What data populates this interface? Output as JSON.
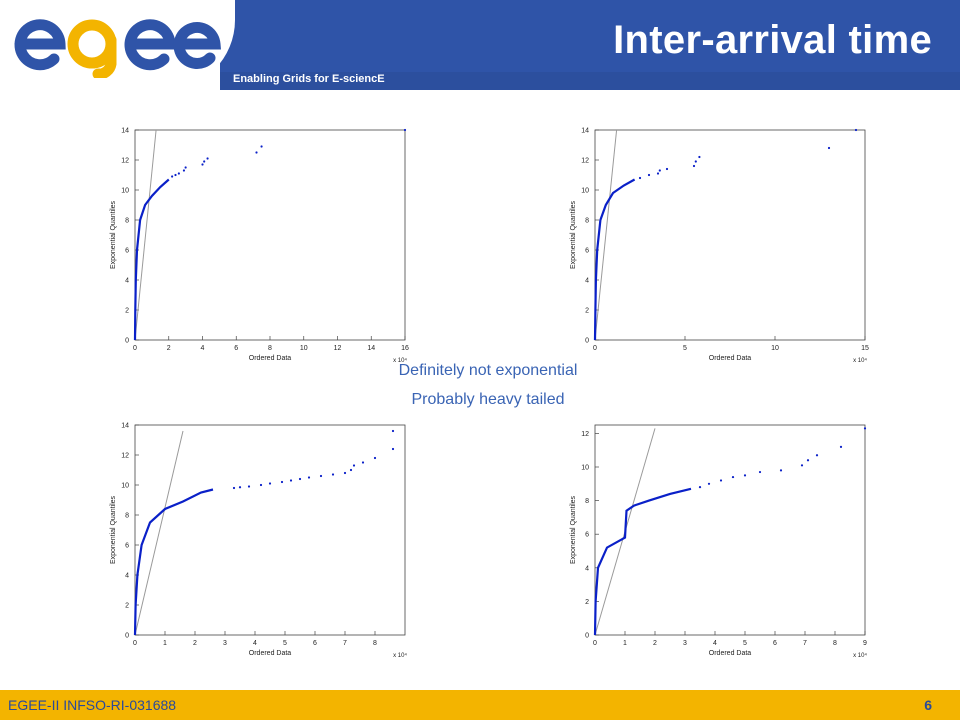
{
  "header": {
    "title": "Inter-arrival time",
    "tagline": "Enabling Grids for E-sciencE",
    "logo_text": "egee"
  },
  "captions": {
    "line1": "Definitely not exponential",
    "line2": "Probably heavy tailed"
  },
  "footer": {
    "project": "EGEE-II INFSO-RI-031688",
    "page": "6"
  },
  "colors": {
    "brand_blue": "#2f54a8",
    "footer_yellow": "#f3b400",
    "data_blue": "#0a20c8",
    "ref_line": "#9a9a9a"
  },
  "chart_data": [
    {
      "type": "scatter",
      "xlabel": "Ordered Data",
      "ylabel": "Exponential Quantiles",
      "xlim": [
        0,
        16
      ],
      "ylim": [
        0,
        14
      ],
      "xticks": [
        0,
        2,
        4,
        6,
        8,
        10,
        12,
        14,
        16
      ],
      "yticks": [
        0,
        2,
        4,
        6,
        8,
        10,
        12,
        14
      ],
      "x_multiplier": "x 10⁴",
      "reference_line": [
        [
          0,
          0
        ],
        [
          1.25,
          14
        ]
      ],
      "curve": [
        [
          0,
          0
        ],
        [
          0.02,
          2
        ],
        [
          0.05,
          4
        ],
        [
          0.12,
          6
        ],
        [
          0.3,
          8
        ],
        [
          0.6,
          9
        ],
        [
          1.0,
          9.6
        ],
        [
          1.5,
          10.2
        ],
        [
          2,
          10.7
        ]
      ],
      "points": [
        [
          2.2,
          10.9
        ],
        [
          2.4,
          11.0
        ],
        [
          2.6,
          11.1
        ],
        [
          2.9,
          11.3
        ],
        [
          3.0,
          11.5
        ],
        [
          4.0,
          11.7
        ],
        [
          4.1,
          11.9
        ],
        [
          4.3,
          12.1
        ],
        [
          7.2,
          12.5
        ],
        [
          7.5,
          12.9
        ],
        [
          16,
          14.0
        ]
      ]
    },
    {
      "type": "scatter",
      "xlabel": "Ordered Data",
      "ylabel": "Exponential Quantiles",
      "xlim": [
        0,
        15
      ],
      "ylim": [
        0,
        14
      ],
      "xticks": [
        0,
        5,
        10,
        15
      ],
      "yticks": [
        0,
        2,
        4,
        6,
        8,
        10,
        12,
        14
      ],
      "x_multiplier": "x 10⁴",
      "reference_line": [
        [
          0,
          0
        ],
        [
          1.2,
          14
        ]
      ],
      "curve": [
        [
          0,
          0
        ],
        [
          0.02,
          2
        ],
        [
          0.05,
          4
        ],
        [
          0.12,
          6
        ],
        [
          0.3,
          8
        ],
        [
          0.6,
          9
        ],
        [
          1.0,
          9.8
        ],
        [
          1.6,
          10.3
        ],
        [
          2.2,
          10.7
        ]
      ],
      "points": [
        [
          2.5,
          10.8
        ],
        [
          3.0,
          11.0
        ],
        [
          3.5,
          11.1
        ],
        [
          3.6,
          11.3
        ],
        [
          4.0,
          11.4
        ],
        [
          5.5,
          11.6
        ],
        [
          5.6,
          11.9
        ],
        [
          5.8,
          12.2
        ],
        [
          13,
          12.8
        ],
        [
          14.5,
          14.0
        ]
      ]
    },
    {
      "type": "scatter",
      "xlabel": "Ordered Data",
      "ylabel": "Exponential Quantiles",
      "xlim": [
        0,
        9
      ],
      "ylim": [
        0,
        14
      ],
      "xticks": [
        0,
        1,
        2,
        3,
        4,
        5,
        6,
        7,
        8
      ],
      "yticks": [
        0,
        2,
        4,
        6,
        8,
        10,
        12,
        14
      ],
      "x_multiplier": "x 10⁴",
      "reference_line": [
        [
          0,
          0
        ],
        [
          1.6,
          13.6
        ]
      ],
      "curve": [
        [
          0,
          0
        ],
        [
          0.02,
          2
        ],
        [
          0.08,
          4
        ],
        [
          0.22,
          6
        ],
        [
          0.5,
          7.5
        ],
        [
          1.0,
          8.4
        ],
        [
          1.6,
          8.9
        ],
        [
          2.2,
          9.5
        ],
        [
          2.6,
          9.7
        ]
      ],
      "points": [
        [
          3.3,
          9.8
        ],
        [
          3.5,
          9.85
        ],
        [
          3.8,
          9.9
        ],
        [
          4.2,
          10.0
        ],
        [
          4.5,
          10.1
        ],
        [
          4.9,
          10.2
        ],
        [
          5.2,
          10.3
        ],
        [
          5.5,
          10.4
        ],
        [
          5.8,
          10.5
        ],
        [
          6.2,
          10.6
        ],
        [
          6.6,
          10.7
        ],
        [
          7.0,
          10.8
        ],
        [
          7.2,
          11.0
        ],
        [
          7.3,
          11.3
        ],
        [
          7.6,
          11.5
        ],
        [
          8.0,
          11.8
        ],
        [
          8.6,
          12.4
        ],
        [
          8.6,
          13.6
        ]
      ]
    },
    {
      "type": "scatter",
      "xlabel": "Ordered Data",
      "ylabel": "Exponential Quantiles",
      "xlim": [
        0,
        9
      ],
      "ylim": [
        0,
        12.5
      ],
      "xticks": [
        0,
        1,
        2,
        3,
        4,
        5,
        6,
        7,
        8,
        9
      ],
      "yticks": [
        0,
        2,
        4,
        6,
        8,
        10,
        12
      ],
      "x_multiplier": "x 10⁴",
      "reference_line": [
        [
          0,
          0
        ],
        [
          2.0,
          12.3
        ]
      ],
      "curve": [
        [
          0,
          0
        ],
        [
          0.02,
          2
        ],
        [
          0.1,
          4
        ],
        [
          0.4,
          5.2
        ],
        [
          1.0,
          5.8
        ],
        [
          1.05,
          7.4
        ],
        [
          1.3,
          7.7
        ],
        [
          1.8,
          8.0
        ],
        [
          2.5,
          8.4
        ],
        [
          3.2,
          8.7
        ]
      ],
      "points": [
        [
          3.5,
          8.8
        ],
        [
          3.8,
          9.0
        ],
        [
          4.2,
          9.2
        ],
        [
          4.6,
          9.4
        ],
        [
          5.0,
          9.5
        ],
        [
          5.5,
          9.7
        ],
        [
          6.2,
          9.8
        ],
        [
          6.9,
          10.1
        ],
        [
          7.1,
          10.4
        ],
        [
          7.4,
          10.7
        ],
        [
          8.2,
          11.2
        ],
        [
          9.0,
          12.3
        ]
      ]
    }
  ]
}
